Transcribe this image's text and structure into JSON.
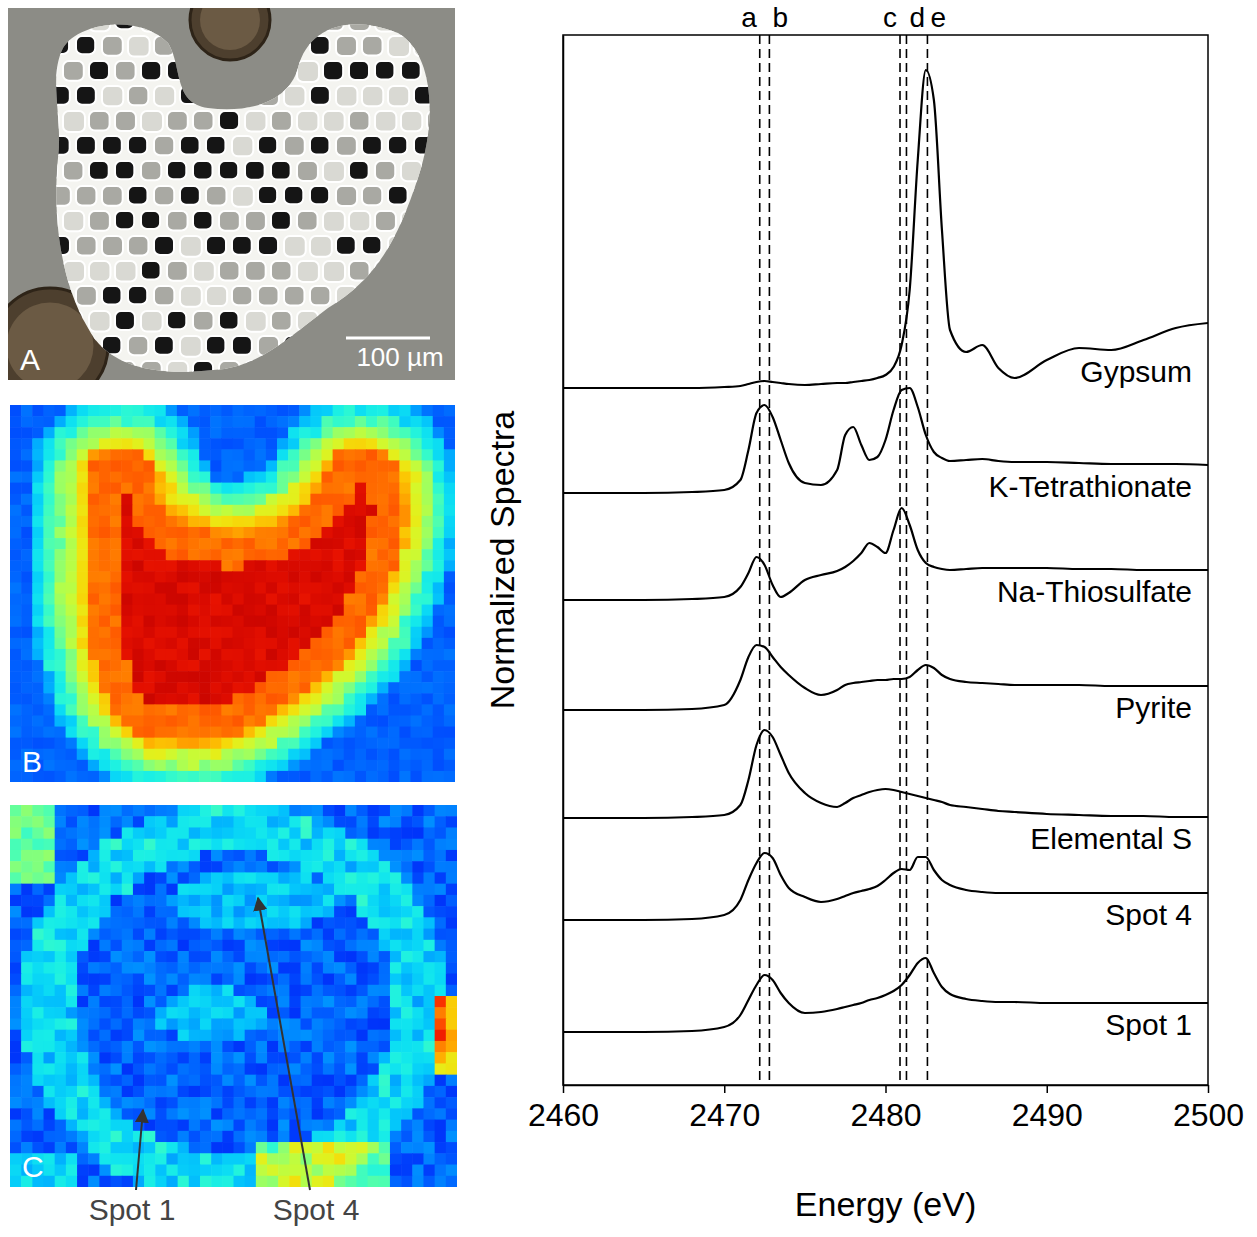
{
  "chart_data": {
    "type": "line",
    "xlabel": "Energy (eV)",
    "ylabel": "Normalized Spectra",
    "xlim": [
      2460,
      2500
    ],
    "xticks": [
      2460,
      2470,
      2480,
      2490,
      2500
    ],
    "ylim": [
      0,
      10.5
    ],
    "tick_labels": "x",
    "x": [
      2460,
      2465,
      2468,
      2470,
      2471,
      2471.5,
      2472,
      2472.5,
      2473,
      2473.5,
      2474,
      2475,
      2476,
      2477,
      2477.5,
      2478,
      2478.5,
      2479,
      2479.5,
      2480,
      2480.5,
      2481,
      2481.5,
      2482,
      2482.5,
      2483,
      2483.5,
      2484,
      2485,
      2486,
      2487,
      2488,
      2490,
      2492,
      2494,
      2496,
      2498,
      2500
    ],
    "series": [
      {
        "name": "Gypsum",
        "color": "#000000",
        "values": [
          6.97,
          6.97,
          6.97,
          6.98,
          6.99,
          7.01,
          7.03,
          7.04,
          7.03,
          7.02,
          7.01,
          7.0,
          7.01,
          7.02,
          7.02,
          7.03,
          7.04,
          7.05,
          7.07,
          7.1,
          7.18,
          7.4,
          7.95,
          9.25,
          10.15,
          9.85,
          8.55,
          7.55,
          7.33,
          7.4,
          7.17,
          7.07,
          7.25,
          7.37,
          7.35,
          7.45,
          7.57,
          7.62
        ]
      },
      {
        "name": "K-Tetrathionate",
        "color": "#000000",
        "values": [
          5.92,
          5.92,
          5.93,
          5.95,
          6.05,
          6.35,
          6.72,
          6.8,
          6.68,
          6.45,
          6.22,
          6.02,
          6.0,
          6.15,
          6.5,
          6.58,
          6.4,
          6.25,
          6.28,
          6.45,
          6.75,
          6.95,
          6.97,
          6.78,
          6.5,
          6.33,
          6.27,
          6.24,
          6.25,
          6.26,
          6.24,
          6.23,
          6.23,
          6.22,
          6.21,
          6.21,
          6.21,
          6.2
        ]
      },
      {
        "name": "Na-Thiosulfate",
        "color": "#000000",
        "values": [
          4.85,
          4.85,
          4.86,
          4.88,
          4.98,
          5.12,
          5.28,
          5.2,
          5.0,
          4.88,
          4.92,
          5.05,
          5.1,
          5.14,
          5.18,
          5.24,
          5.32,
          5.42,
          5.38,
          5.32,
          5.55,
          5.77,
          5.6,
          5.35,
          5.22,
          5.18,
          5.16,
          5.15,
          5.16,
          5.17,
          5.17,
          5.17,
          5.17,
          5.16,
          5.16,
          5.15,
          5.15,
          5.15
        ]
      },
      {
        "name": "Pyrite",
        "color": "#000000",
        "values": [
          3.75,
          3.75,
          3.76,
          3.8,
          4.05,
          4.28,
          4.4,
          4.38,
          4.28,
          4.18,
          4.1,
          3.97,
          3.9,
          3.95,
          4.0,
          4.02,
          4.03,
          4.04,
          4.05,
          4.05,
          4.06,
          4.06,
          4.08,
          4.15,
          4.2,
          4.17,
          4.1,
          4.06,
          4.03,
          4.02,
          4.01,
          4.0,
          4.0,
          4.0,
          3.99,
          3.99,
          3.99,
          3.99
        ]
      },
      {
        "name": "Elemental S",
        "color": "#000000",
        "values": [
          2.67,
          2.67,
          2.68,
          2.7,
          2.8,
          3.05,
          3.4,
          3.55,
          3.48,
          3.3,
          3.12,
          2.92,
          2.82,
          2.78,
          2.82,
          2.87,
          2.9,
          2.93,
          2.95,
          2.96,
          2.95,
          2.93,
          2.91,
          2.89,
          2.87,
          2.85,
          2.83,
          2.8,
          2.78,
          2.76,
          2.74,
          2.73,
          2.71,
          2.7,
          2.69,
          2.69,
          2.68,
          2.68
        ]
      },
      {
        "name": "Spot 4",
        "color": "#000000",
        "values": [
          1.65,
          1.65,
          1.66,
          1.7,
          1.85,
          2.05,
          2.22,
          2.32,
          2.27,
          2.1,
          1.97,
          1.88,
          1.83,
          1.86,
          1.89,
          1.92,
          1.94,
          1.96,
          1.99,
          2.05,
          2.12,
          2.16,
          2.15,
          2.28,
          2.28,
          2.15,
          2.05,
          2.0,
          1.95,
          1.93,
          1.92,
          1.92,
          1.92,
          1.92,
          1.92,
          1.92,
          1.92,
          1.92
        ]
      },
      {
        "name": "Spot 1",
        "color": "#000000",
        "values": [
          0.53,
          0.53,
          0.54,
          0.58,
          0.7,
          0.85,
          1.0,
          1.1,
          1.05,
          0.92,
          0.82,
          0.72,
          0.73,
          0.76,
          0.78,
          0.8,
          0.82,
          0.85,
          0.87,
          0.9,
          0.94,
          1.0,
          1.1,
          1.22,
          1.27,
          1.12,
          0.98,
          0.91,
          0.86,
          0.84,
          0.83,
          0.83,
          0.82,
          0.82,
          0.82,
          0.82,
          0.82,
          0.82
        ]
      }
    ],
    "annotations": [
      {
        "text": "a",
        "x": 2472.2
      },
      {
        "text": "b",
        "x": 2472.8
      },
      {
        "text": "c",
        "x": 2480.9
      },
      {
        "text": "d",
        "x": 2481.3
      },
      {
        "text": "e",
        "x": 2482.6
      }
    ]
  },
  "image_panels": [
    {
      "label": "A",
      "scale_bar": "100 µm"
    },
    {
      "label": "B"
    },
    {
      "label": "C",
      "spots": [
        "Spot 1",
        "Spot 4"
      ]
    }
  ]
}
